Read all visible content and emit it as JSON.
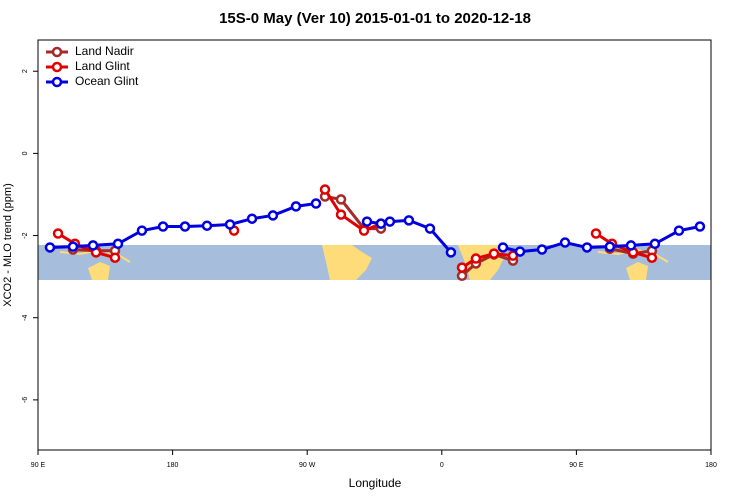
{
  "chart_data": {
    "type": "line",
    "title": "15S-0 May (Ver 10)   2015-01-01 to 2020-12-18",
    "xlabel": "Longitude",
    "ylabel": "XCO2 - MLO trend (ppm)",
    "xlim": [
      90,
      540
    ],
    "ylim": [
      -7.22,
      2.76
    ],
    "xticks": [
      {
        "value": 90,
        "label": "90 E"
      },
      {
        "value": 180,
        "label": "180"
      },
      {
        "value": 270,
        "label": "90 W"
      },
      {
        "value": 360,
        "label": "0"
      },
      {
        "value": 450,
        "label": "90 E"
      },
      {
        "value": 540,
        "label": "180"
      }
    ],
    "yticks": [
      2,
      0,
      -2,
      -4,
      -6
    ],
    "legend": "top-left",
    "series": [
      {
        "name": "Land Nadir",
        "color": "#a52a2a",
        "x": [
          113.4,
          128.8,
          141.5,
          null,
          281.9,
          292.6,
          308.0,
          319.3,
          null,
          373.5,
          382.8,
          394.9,
          407.6,
          null,
          472.4,
          487.9,
          500.5
        ],
        "values": [
          -2.34,
          -2.37,
          -2.37,
          null,
          -1.05,
          -1.12,
          -1.83,
          -1.83,
          null,
          -2.98,
          -2.68,
          -2.46,
          -2.61,
          null,
          -2.32,
          -2.44,
          -2.37
        ]
      },
      {
        "name": "Land Glint",
        "color": "#e00000",
        "x": [
          103.4,
          114.7,
          128.8,
          141.5,
          null,
          221.1,
          null,
          281.9,
          292.6,
          308.0,
          319.3,
          null,
          373.5,
          382.8,
          394.9,
          407.6,
          null,
          463.1,
          473.8,
          487.9,
          500.5
        ],
        "values": [
          -1.95,
          -2.2,
          -2.41,
          -2.54,
          null,
          -1.88,
          null,
          -0.88,
          -1.49,
          -1.88,
          -1.71,
          null,
          -2.78,
          -2.56,
          -2.44,
          -2.49,
          null,
          -1.95,
          -2.2,
          -2.41,
          -2.54
        ]
      },
      {
        "name": "Ocean Glint",
        "color": "#0000e0",
        "x": [
          98.0,
          113.4,
          126.8,
          143.5,
          159.5,
          173.6,
          188.3,
          203.0,
          218.4,
          233.1,
          247.1,
          262.5,
          275.9,
          null,
          310.0,
          319.3,
          325.3,
          338.0,
          352.1,
          366.1,
          null,
          400.9,
          412.3,
          427.0,
          442.4,
          457.1,
          472.4,
          486.5,
          502.5,
          518.6,
          532.6
        ],
        "values": [
          -2.29,
          -2.27,
          -2.24,
          -2.2,
          -1.88,
          -1.78,
          -1.78,
          -1.76,
          -1.73,
          -1.59,
          -1.51,
          -1.29,
          -1.22,
          null,
          -1.66,
          -1.71,
          -1.66,
          -1.63,
          -1.83,
          -2.41,
          null,
          -2.29,
          -2.39,
          -2.34,
          -2.17,
          -2.29,
          -2.27,
          -2.24,
          -2.2,
          -1.88,
          -1.78
        ]
      }
    ]
  }
}
